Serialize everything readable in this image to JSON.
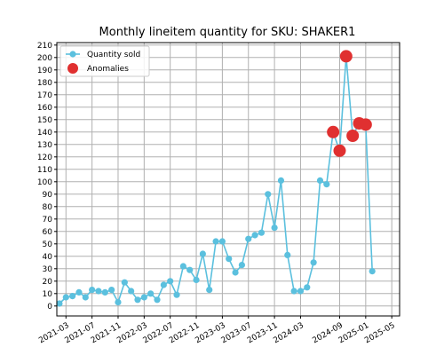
{
  "chart_data": {
    "type": "line",
    "title": "Monthly lineitem quantity for SKU: SHAKER1",
    "xlabel": "",
    "ylabel": "",
    "ylim": [
      -8,
      212
    ],
    "y_ticks": [
      0,
      10,
      20,
      30,
      40,
      50,
      60,
      70,
      80,
      90,
      100,
      110,
      120,
      130,
      140,
      150,
      160,
      170,
      180,
      190,
      200,
      210
    ],
    "x_ticks": [
      "2021-03",
      "2021-07",
      "2021-11",
      "2022-03",
      "2022-07",
      "2022-11",
      "2023-03",
      "2023-07",
      "2023-11",
      "2024-03",
      "2024-09",
      "2025-01",
      "2025-05"
    ],
    "grid": true,
    "legend_placement": "top-left",
    "series": [
      {
        "name": "Quantity sold",
        "color": "#5bc0de",
        "marker": "circle",
        "points": [
          {
            "x": "2021-02",
            "y": 2
          },
          {
            "x": "2021-03",
            "y": 7
          },
          {
            "x": "2021-04",
            "y": 8
          },
          {
            "x": "2021-05",
            "y": 11
          },
          {
            "x": "2021-06",
            "y": 7
          },
          {
            "x": "2021-07",
            "y": 13
          },
          {
            "x": "2021-08",
            "y": 12
          },
          {
            "x": "2021-09",
            "y": 11
          },
          {
            "x": "2021-10",
            "y": 13
          },
          {
            "x": "2021-11",
            "y": 3
          },
          {
            "x": "2021-12",
            "y": 19
          },
          {
            "x": "2022-01",
            "y": 12
          },
          {
            "x": "2022-02",
            "y": 5
          },
          {
            "x": "2022-03",
            "y": 7
          },
          {
            "x": "2022-04",
            "y": 10
          },
          {
            "x": "2022-05",
            "y": 5
          },
          {
            "x": "2022-06",
            "y": 17
          },
          {
            "x": "2022-07",
            "y": 20
          },
          {
            "x": "2022-08",
            "y": 9
          },
          {
            "x": "2022-09",
            "y": 32
          },
          {
            "x": "2022-10",
            "y": 29
          },
          {
            "x": "2022-11",
            "y": 21
          },
          {
            "x": "2022-12",
            "y": 42
          },
          {
            "x": "2023-01",
            "y": 13
          },
          {
            "x": "2023-02",
            "y": 52
          },
          {
            "x": "2023-03",
            "y": 52
          },
          {
            "x": "2023-04",
            "y": 38
          },
          {
            "x": "2023-05",
            "y": 27
          },
          {
            "x": "2023-06",
            "y": 33
          },
          {
            "x": "2023-07",
            "y": 54
          },
          {
            "x": "2023-08",
            "y": 57
          },
          {
            "x": "2023-09",
            "y": 59
          },
          {
            "x": "2023-10",
            "y": 90
          },
          {
            "x": "2023-11",
            "y": 63
          },
          {
            "x": "2023-12",
            "y": 101
          },
          {
            "x": "2024-01",
            "y": 41
          },
          {
            "x": "2024-02",
            "y": 12
          },
          {
            "x": "2024-03",
            "y": 12
          },
          {
            "x": "2024-04",
            "y": 15
          },
          {
            "x": "2024-05",
            "y": 35
          },
          {
            "x": "2024-06",
            "y": 101
          },
          {
            "x": "2024-07",
            "y": 98
          },
          {
            "x": "2024-08",
            "y": 140
          },
          {
            "x": "2024-09",
            "y": 125
          },
          {
            "x": "2024-10",
            "y": 201
          },
          {
            "x": "2024-11",
            "y": 137
          },
          {
            "x": "2024-12",
            "y": 147
          },
          {
            "x": "2025-01",
            "y": 146
          },
          {
            "x": "2025-02",
            "y": 28
          }
        ]
      },
      {
        "name": "Anomalies",
        "color": "#e03030",
        "marker": "circle",
        "points": [
          {
            "x": "2024-08",
            "y": 140
          },
          {
            "x": "2024-09",
            "y": 125
          },
          {
            "x": "2024-10",
            "y": 201
          },
          {
            "x": "2024-11",
            "y": 137
          },
          {
            "x": "2024-12",
            "y": 147
          },
          {
            "x": "2025-01",
            "y": 146
          }
        ]
      }
    ]
  }
}
